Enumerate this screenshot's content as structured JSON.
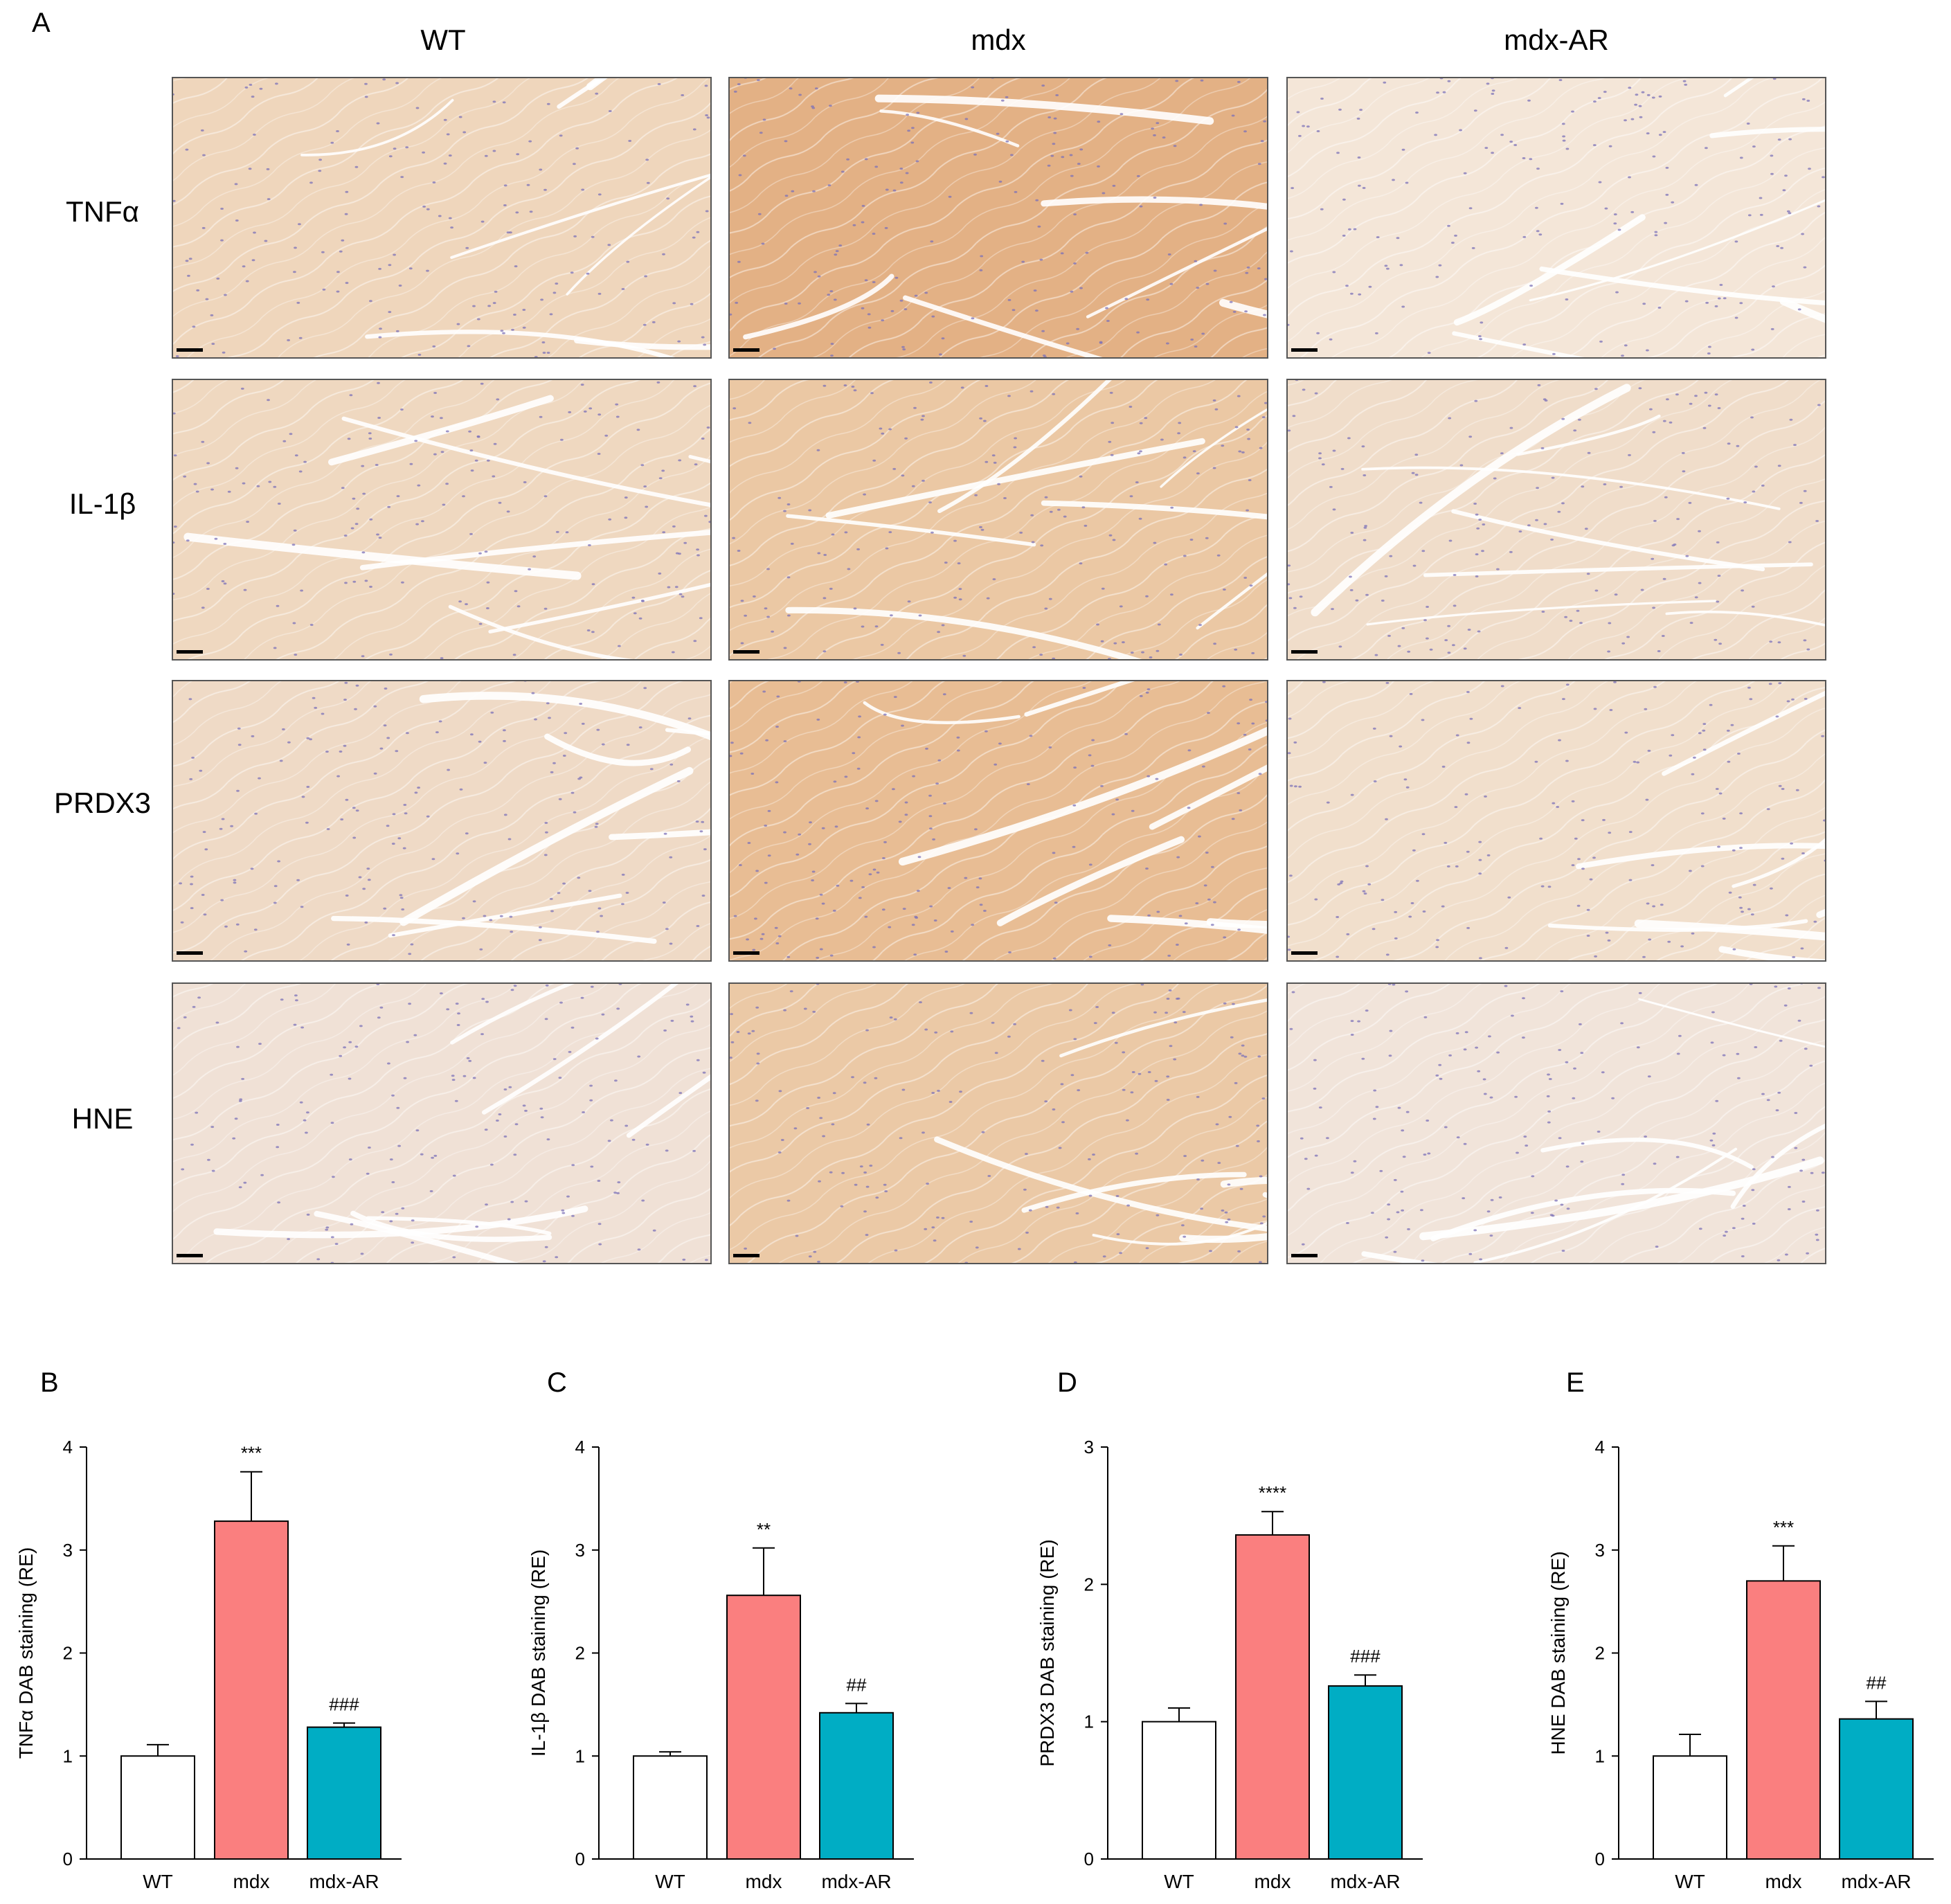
{
  "panel_a": {
    "letter": "A",
    "columns": [
      "WT",
      "mdx",
      "mdx-AR"
    ],
    "rows": [
      "TNFα",
      "IL-1β",
      "PRDX3",
      "HNE"
    ],
    "tissue_tone": [
      [
        "#efd6bc",
        "#e3b185",
        "#f4e6d8"
      ],
      [
        "#efd8c0",
        "#ebc8a4",
        "#f0ddca"
      ],
      [
        "#efdac6",
        "#e8bd94",
        "#f1dfcc"
      ],
      [
        "#f0e1d6",
        "#ebc9a6",
        "#f1e4da"
      ]
    ]
  },
  "colors": {
    "wt": "#ffffff",
    "mdx": "#fa7f7f",
    "mdx_ar": "#00adc4",
    "panel_border": "#555555",
    "nuclei": "#7c71b8",
    "scalebar": "#000000"
  },
  "chart_data": [
    {
      "type": "bar",
      "panel": "B",
      "categories": [
        "WT",
        "mdx",
        "mdx-AR"
      ],
      "values": [
        1.0,
        3.28,
        1.28
      ],
      "errors": [
        0.11,
        0.48,
        0.04
      ],
      "annotations": [
        "",
        "***",
        "###"
      ],
      "ylabel": "TNFα DAB staining (RE)",
      "ylim": [
        0,
        4
      ],
      "yticks": [
        "0",
        "1",
        "2",
        "3",
        "4"
      ]
    },
    {
      "type": "bar",
      "panel": "C",
      "categories": [
        "WT",
        "mdx",
        "mdx-AR"
      ],
      "values": [
        1.0,
        2.56,
        1.42
      ],
      "errors": [
        0.04,
        0.46,
        0.09
      ],
      "annotations": [
        "",
        "**",
        "##"
      ],
      "ylabel": "IL-1β DAB staining (RE)",
      "ylim": [
        0,
        4
      ],
      "yticks": [
        "0",
        "1",
        "2",
        "3",
        "4"
      ]
    },
    {
      "type": "bar",
      "panel": "D",
      "categories": [
        "WT",
        "mdx",
        "mdx-AR"
      ],
      "values": [
        1.0,
        2.36,
        1.26
      ],
      "errors": [
        0.1,
        0.17,
        0.08
      ],
      "annotations": [
        "",
        "****",
        "###"
      ],
      "ylabel": "PRDX3 DAB staining (RE)",
      "ylim": [
        0,
        3
      ],
      "yticks": [
        "0",
        "1",
        "2",
        "3"
      ]
    },
    {
      "type": "bar",
      "panel": "E",
      "categories": [
        "WT",
        "mdx",
        "mdx-AR"
      ],
      "values": [
        1.0,
        2.7,
        1.36
      ],
      "errors": [
        0.21,
        0.34,
        0.17
      ],
      "annotations": [
        "",
        "***",
        "##"
      ],
      "ylabel": "HNE DAB staining (RE)",
      "ylim": [
        0,
        4
      ],
      "yticks": [
        "0",
        "1",
        "2",
        "3",
        "4"
      ]
    }
  ]
}
